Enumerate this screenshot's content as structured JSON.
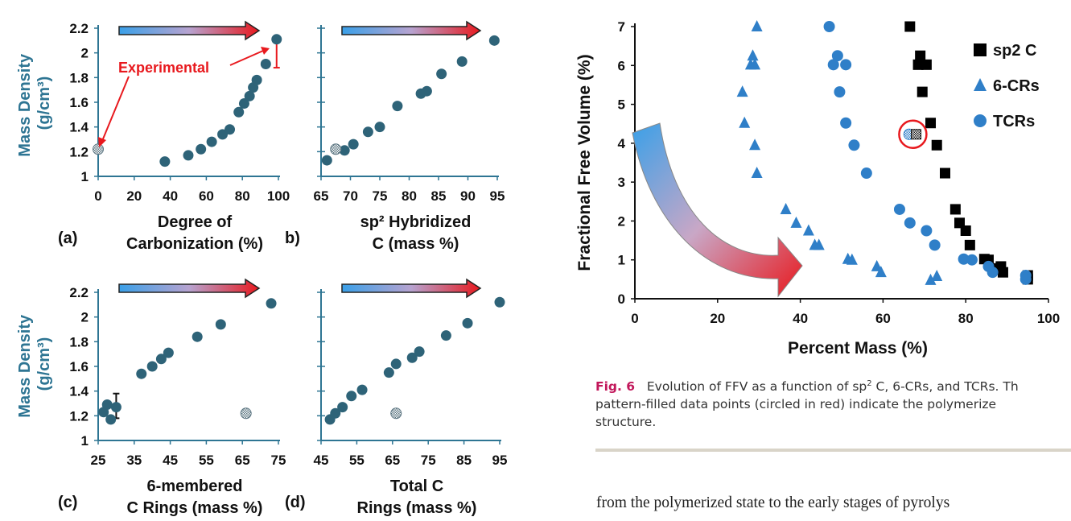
{
  "colors": {
    "left_marker": "#2e6378",
    "left_axis_text": "#2e7593",
    "sp2": "#000000",
    "ring": "#2f7fc8",
    "annotation": "#e8191e",
    "arrow_start": "#3aa0e8",
    "arrow_end": "#e8191e"
  },
  "left_figure": {
    "ylabel": "Mass Density (g/cm³)",
    "experimental_label": "Experimental"
  },
  "chart_data": [
    {
      "id": "a",
      "type": "scatter",
      "panel_label": "(a)",
      "xlabel": [
        "Degree of",
        "Carbonization (%)"
      ],
      "xlim": [
        0,
        100
      ],
      "ylim": [
        1,
        2.2
      ],
      "xticks": [
        "0",
        "20",
        "40",
        "60",
        "80",
        "100"
      ],
      "yticks": [
        "1",
        "1.2",
        "1.4",
        "1.6",
        "1.8",
        "2",
        "2.2"
      ],
      "points": [
        [
          37,
          1.12
        ],
        [
          50,
          1.17
        ],
        [
          57,
          1.22
        ],
        [
          63,
          1.28
        ],
        [
          69,
          1.34
        ],
        [
          73,
          1.38
        ],
        [
          78,
          1.52
        ],
        [
          81,
          1.59
        ],
        [
          84,
          1.65
        ],
        [
          86,
          1.72
        ],
        [
          88,
          1.78
        ],
        [
          93,
          1.91
        ],
        [
          99,
          2.11
        ]
      ],
      "patterned": [
        [
          0,
          1.22
        ]
      ],
      "error_bar": {
        "x": 99,
        "y_low": 1.88,
        "y_high": 2.11
      }
    },
    {
      "id": "b",
      "type": "scatter",
      "panel_label": "b)",
      "xlabel": [
        "sp² Hybridized",
        "C (mass %)"
      ],
      "xlim": [
        65,
        95
      ],
      "ylim": [
        1,
        2.2
      ],
      "xticks": [
        "65",
        "70",
        "75",
        "80",
        "85",
        "90",
        "95"
      ],
      "points": [
        [
          66,
          1.13
        ],
        [
          69,
          1.21
        ],
        [
          70.5,
          1.26
        ],
        [
          73,
          1.36
        ],
        [
          75,
          1.4
        ],
        [
          78,
          1.57
        ],
        [
          82,
          1.67
        ],
        [
          83,
          1.69
        ],
        [
          85.5,
          1.83
        ],
        [
          89,
          1.93
        ],
        [
          94.5,
          2.1
        ]
      ],
      "patterned": [
        [
          67.5,
          1.22
        ]
      ]
    },
    {
      "id": "c",
      "type": "scatter",
      "panel_label": "(c)",
      "xlabel": [
        "6-membered",
        "C Rings (mass %)"
      ],
      "xlim": [
        25,
        75
      ],
      "ylim": [
        1,
        2.2
      ],
      "xticks": [
        "25",
        "35",
        "45",
        "55",
        "65",
        "75"
      ],
      "yticks": [
        "1",
        "1.2",
        "1.4",
        "1.6",
        "1.8",
        "2",
        "2.2"
      ],
      "points": [
        [
          26.5,
          1.23
        ],
        [
          27.5,
          1.29
        ],
        [
          28.5,
          1.17
        ],
        [
          30,
          1.27
        ],
        [
          37,
          1.54
        ],
        [
          40,
          1.6
        ],
        [
          42.5,
          1.66
        ],
        [
          44.5,
          1.71
        ],
        [
          52.5,
          1.84
        ],
        [
          59,
          1.94
        ],
        [
          73,
          2.11
        ]
      ],
      "patterned": [
        [
          66,
          1.22
        ]
      ],
      "error_bar": {
        "x": 30,
        "y_low": 1.18,
        "y_high": 1.38
      }
    },
    {
      "id": "d",
      "type": "scatter",
      "panel_label": "(d)",
      "xlabel": [
        "Total C",
        "Rings (mass %)"
      ],
      "xlim": [
        45,
        95
      ],
      "ylim": [
        1,
        2.2
      ],
      "xticks": [
        "45",
        "55",
        "65",
        "75",
        "85",
        "95"
      ],
      "points": [
        [
          47.5,
          1.17
        ],
        [
          49,
          1.22
        ],
        [
          51,
          1.27
        ],
        [
          53.5,
          1.36
        ],
        [
          56.5,
          1.41
        ],
        [
          64,
          1.55
        ],
        [
          66,
          1.62
        ],
        [
          70.5,
          1.67
        ],
        [
          72.5,
          1.72
        ],
        [
          80,
          1.85
        ],
        [
          86,
          1.95
        ],
        [
          95,
          2.12
        ]
      ],
      "patterned": [
        [
          66,
          1.22
        ]
      ]
    },
    {
      "id": "ffv",
      "type": "scatter",
      "xlabel": "Percent Mass (%)",
      "ylabel": "Fractional Free Volume (%)",
      "xlim": [
        0,
        100
      ],
      "ylim": [
        0,
        7
      ],
      "xticks": [
        "0",
        "20",
        "40",
        "60",
        "80",
        "100"
      ],
      "yticks": [
        "0",
        "1",
        "2",
        "3",
        "4",
        "5",
        "6",
        "7"
      ],
      "legend_position": "top-right",
      "series": [
        {
          "name": "sp2 C",
          "marker": "square",
          "points": [
            [
              66.5,
              7
            ],
            [
              69,
              6.25
            ],
            [
              68.5,
              6.02
            ],
            [
              70.5,
              6.02
            ],
            [
              69.5,
              5.32
            ],
            [
              71.5,
              4.52
            ],
            [
              73,
              3.95
            ],
            [
              75,
              3.23
            ],
            [
              77.5,
              2.3
            ],
            [
              78.5,
              1.95
            ],
            [
              80,
              1.75
            ],
            [
              81,
              1.38
            ],
            [
              84.5,
              1.02
            ],
            [
              85.5,
              1.0
            ],
            [
              86.5,
              0.78
            ],
            [
              88.5,
              0.83
            ],
            [
              89,
              0.68
            ],
            [
              95,
              0.6
            ],
            [
              95,
              0.5
            ]
          ]
        },
        {
          "name": "6-CRs",
          "marker": "triangle",
          "points": [
            [
              29.5,
              7
            ],
            [
              28.5,
              6.25
            ],
            [
              28,
              6.02
            ],
            [
              29,
              6.02
            ],
            [
              26,
              5.32
            ],
            [
              26.5,
              4.52
            ],
            [
              29,
              3.95
            ],
            [
              29.5,
              3.23
            ],
            [
              36.5,
              2.3
            ],
            [
              39,
              1.95
            ],
            [
              42,
              1.75
            ],
            [
              43.5,
              1.38
            ],
            [
              44.5,
              1.38
            ],
            [
              51.5,
              1.02
            ],
            [
              52.5,
              1.0
            ],
            [
              58.5,
              0.83
            ],
            [
              59.5,
              0.68
            ],
            [
              71.5,
              0.48
            ],
            [
              73,
              0.58
            ]
          ]
        },
        {
          "name": "TCRs",
          "marker": "circle",
          "points": [
            [
              47,
              7
            ],
            [
              49,
              6.25
            ],
            [
              48,
              6.02
            ],
            [
              51,
              6.02
            ],
            [
              49.5,
              5.32
            ],
            [
              51,
              4.52
            ],
            [
              53,
              3.95
            ],
            [
              56,
              3.23
            ],
            [
              64,
              2.3
            ],
            [
              66.5,
              1.95
            ],
            [
              70.5,
              1.75
            ],
            [
              72.5,
              1.38
            ],
            [
              79.5,
              1.02
            ],
            [
              81.5,
              1.0
            ],
            [
              85.5,
              0.83
            ],
            [
              86.5,
              0.68
            ],
            [
              94.5,
              0.6
            ],
            [
              94.5,
              0.5
            ]
          ]
        }
      ],
      "patterned": [
        [
          66.3,
          4.23
        ],
        [
          68,
          4.23
        ]
      ],
      "highlight_circle": {
        "x": 67.2,
        "y": 4.23
      }
    }
  ],
  "caption": {
    "fig_label": "Fig. 6",
    "text_1": "Evolution of FFV as a function of sp",
    "superscript": "2",
    "text_2": " C, 6-CRs, and TCRs. Th",
    "line_2": "pattern-filled data points (circled in red) indicate the polymerize",
    "line_3": "structure."
  },
  "body_text": "from the polymerized state to the early stages of pyrolys"
}
